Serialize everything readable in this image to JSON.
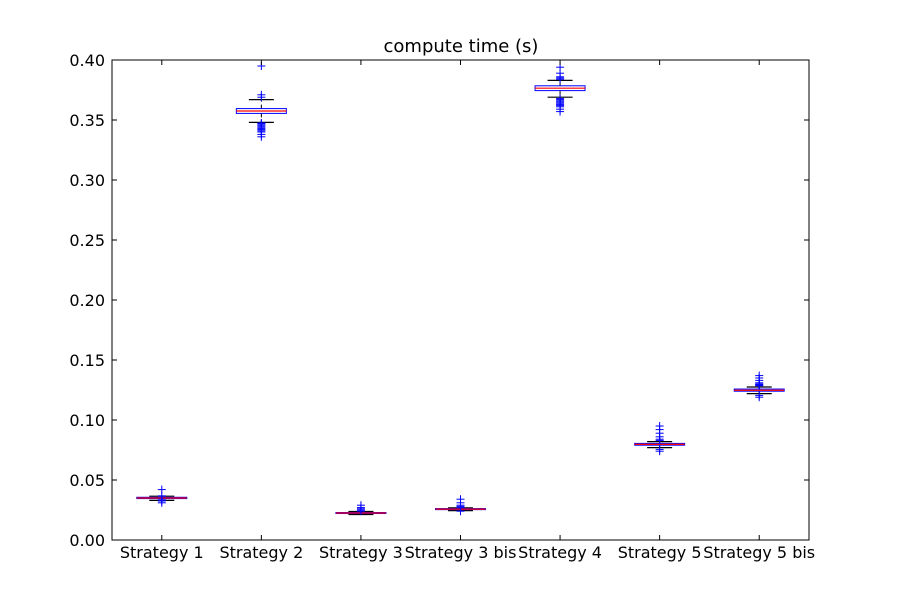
{
  "chart_data": {
    "type": "boxplot",
    "title": "compute time (s)",
    "xlabel": "",
    "ylabel": "",
    "ylim": [
      0.0,
      0.4
    ],
    "yticks": [
      "0.00",
      "0.05",
      "0.10",
      "0.15",
      "0.20",
      "0.25",
      "0.30",
      "0.35",
      "0.40"
    ],
    "categories": [
      "Strategy 1",
      "Strategy 2",
      "Strategy 3",
      "Strategy 3 bis",
      "Strategy 4",
      "Strategy 5",
      "Strategy 5 bis"
    ],
    "series": [
      {
        "name": "Strategy 1",
        "whislo": 0.033,
        "q1": 0.0345,
        "med": 0.035,
        "q3": 0.0356,
        "whishi": 0.0365,
        "fliers": [
          0.031,
          0.0325,
          0.0335,
          0.0368,
          0.042
        ]
      },
      {
        "name": "Strategy 2",
        "whislo": 0.348,
        "q1": 0.3555,
        "med": 0.3575,
        "q3": 0.3595,
        "whishi": 0.367,
        "fliers": [
          0.336,
          0.338,
          0.34,
          0.341,
          0.342,
          0.343,
          0.344,
          0.345,
          0.346,
          0.347,
          0.3475,
          0.369,
          0.371,
          0.395
        ]
      },
      {
        "name": "Strategy 3",
        "whislo": 0.0212,
        "q1": 0.0221,
        "med": 0.0225,
        "q3": 0.0229,
        "whishi": 0.0238,
        "fliers": [
          0.024,
          0.025,
          0.026,
          0.027,
          0.029
        ]
      },
      {
        "name": "Strategy 3 bis",
        "whislo": 0.0245,
        "q1": 0.0253,
        "med": 0.0257,
        "q3": 0.0262,
        "whishi": 0.0268,
        "fliers": [
          0.024,
          0.027,
          0.028,
          0.029,
          0.031,
          0.034
        ]
      },
      {
        "name": "Strategy 4",
        "whislo": 0.369,
        "q1": 0.3745,
        "med": 0.3765,
        "q3": 0.3785,
        "whishi": 0.383,
        "fliers": [
          0.357,
          0.359,
          0.361,
          0.362,
          0.363,
          0.364,
          0.365,
          0.366,
          0.367,
          0.368,
          0.384,
          0.385,
          0.386,
          0.389,
          0.394
        ]
      },
      {
        "name": "Strategy 5",
        "whislo": 0.077,
        "q1": 0.079,
        "med": 0.0797,
        "q3": 0.0805,
        "whishi": 0.082,
        "fliers": [
          0.074,
          0.0755,
          0.083,
          0.084,
          0.086,
          0.089,
          0.092,
          0.095
        ]
      },
      {
        "name": "Strategy 5 bis",
        "whislo": 0.122,
        "q1": 0.124,
        "med": 0.1248,
        "q3": 0.1258,
        "whishi": 0.1275,
        "fliers": [
          0.119,
          0.1205,
          0.1285,
          0.129,
          0.1295,
          0.13,
          0.131,
          0.133,
          0.135,
          0.137
        ]
      }
    ],
    "colors": {
      "box": "#0000ff",
      "median": "#ff0000",
      "whisker_cap": "#000000",
      "flier": "#0000ff",
      "axes": "#000000",
      "background": "#ffffff"
    },
    "grid": false
  }
}
